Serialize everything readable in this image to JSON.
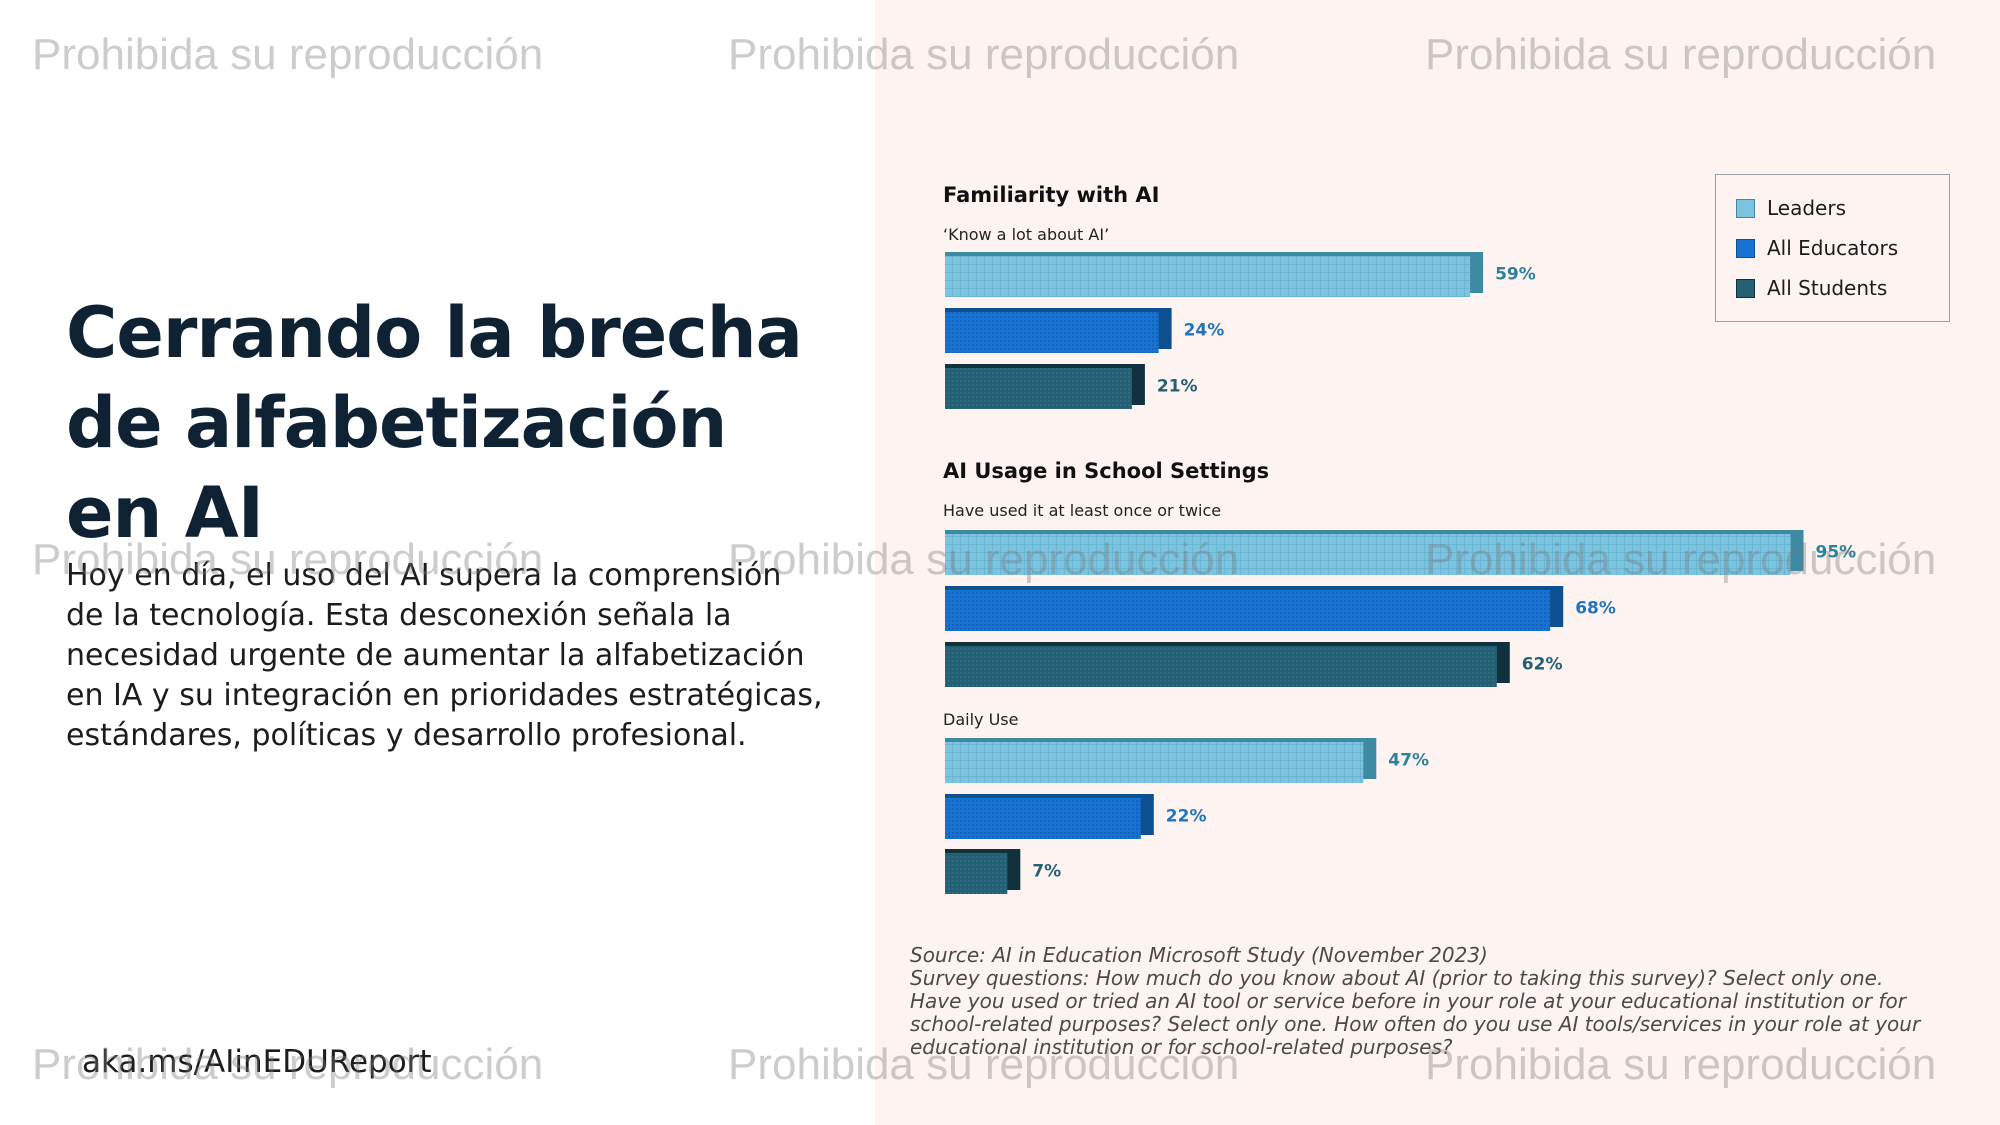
{
  "slide": {
    "title": "Cerrando la brecha de alfabetización en AI",
    "body": "Hoy en día, el uso del AI supera la comprensión de la tecnología. Esta desconexión señala la necesidad urgente de aumentar la alfabetización en IA y su integración en prioridades estratégicas, estándares, políticas y desarrollo profesional.",
    "link": "aka.ms/AIinEDUReport"
  },
  "watermark": "Prohibida su reproducción",
  "source": [
    "Source: AI in Education Microsoft Study (November 2023)",
    "Survey questions: How much do you know about AI (prior to taking this survey)? Select only one.",
    "Have you used or tried an AI tool or service before in your role at your educational institution or for",
    "school-related purposes? Select only one. How often do you use AI tools/services in your role at your",
    "educational institution or for school-related purposes?"
  ],
  "colors": {
    "leaders": "#7cc3df",
    "leaders_edge": "#3f8aa3",
    "educators": "#1673d3",
    "educators_edge": "#0d4f8f",
    "students": "#255f74",
    "students_edge": "#12313f",
    "leaders_label": "#2f7f9f",
    "educators_label": "#1f74bf",
    "students_label": "#255f74"
  },
  "chart_data": {
    "type": "bar",
    "orientation": "horizontal",
    "legend": {
      "position": "top-right",
      "entries": [
        "Leaders",
        "All Educators",
        "All Students"
      ]
    },
    "sections": [
      {
        "title": "Familiarity with AI",
        "groups": [
          {
            "label": "‘Know a lot about AI’",
            "values": [
              59,
              24,
              21
            ],
            "labels": [
              "59%",
              "24%",
              "21%"
            ]
          }
        ]
      },
      {
        "title": "AI Usage in School Settings",
        "groups": [
          {
            "label": "Have used it at least once or twice",
            "values": [
              95,
              68,
              62
            ],
            "labels": [
              "95%",
              "68%",
              "62%"
            ]
          },
          {
            "label": "Daily Use",
            "values": [
              47,
              22,
              7
            ],
            "labels": [
              "47%",
              "22%",
              "7%"
            ]
          }
        ]
      }
    ]
  }
}
